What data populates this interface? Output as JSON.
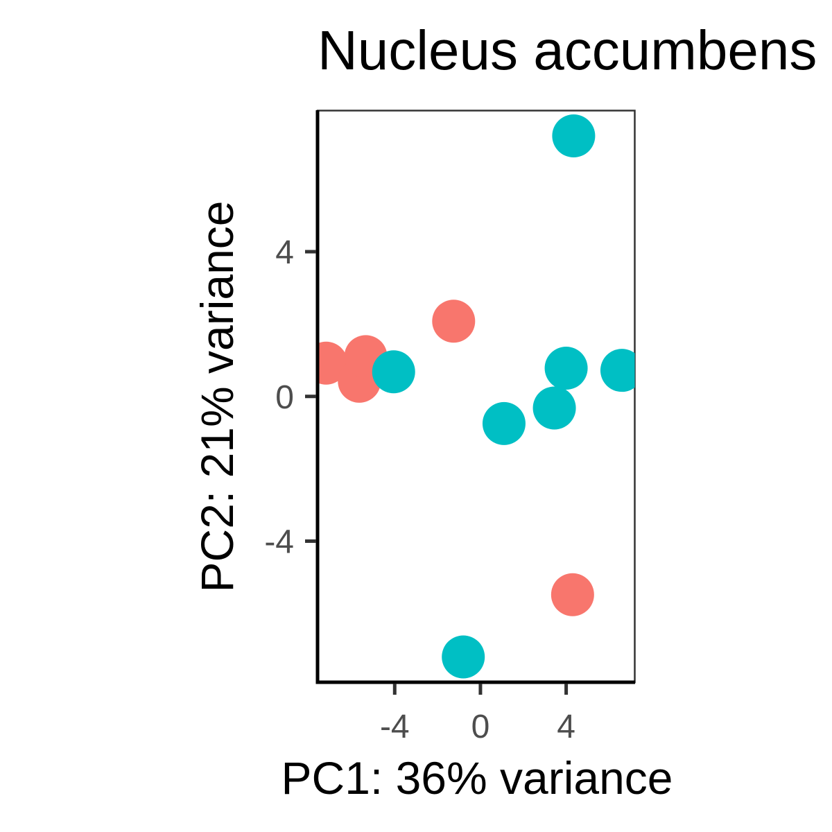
{
  "chart_data": {
    "type": "scatter",
    "title": "Nucleus accumbens",
    "xlabel": "PC1: 36% variance",
    "ylabel": "PC2: 21% variance",
    "xlim": [
      -7.6,
      7.2
    ],
    "ylim": [
      -7.9,
      7.9
    ],
    "xticks": [
      -4,
      0,
      4
    ],
    "yticks": [
      -4,
      0,
      4
    ],
    "xtick_labels": [
      "-4",
      "0",
      "4"
    ],
    "ytick_labels": [
      "-4",
      "0",
      "4"
    ],
    "grid": false,
    "series": [
      {
        "color": "#F8766D",
        "points": [
          {
            "x": -7.2,
            "y": 0.92
          },
          {
            "x": -5.65,
            "y": 0.42
          },
          {
            "x": -5.35,
            "y": 1.1
          },
          {
            "x": -1.25,
            "y": 2.08
          },
          {
            "x": 4.3,
            "y": -5.48
          }
        ]
      },
      {
        "color": "#00BFC4",
        "points": [
          {
            "x": -4.05,
            "y": 0.68
          },
          {
            "x": -0.8,
            "y": -7.2
          },
          {
            "x": 1.1,
            "y": -0.75
          },
          {
            "x": 3.45,
            "y": -0.32
          },
          {
            "x": 4.0,
            "y": 0.78
          },
          {
            "x": 6.6,
            "y": 0.72
          },
          {
            "x": 4.35,
            "y": 7.2
          }
        ]
      }
    ]
  }
}
